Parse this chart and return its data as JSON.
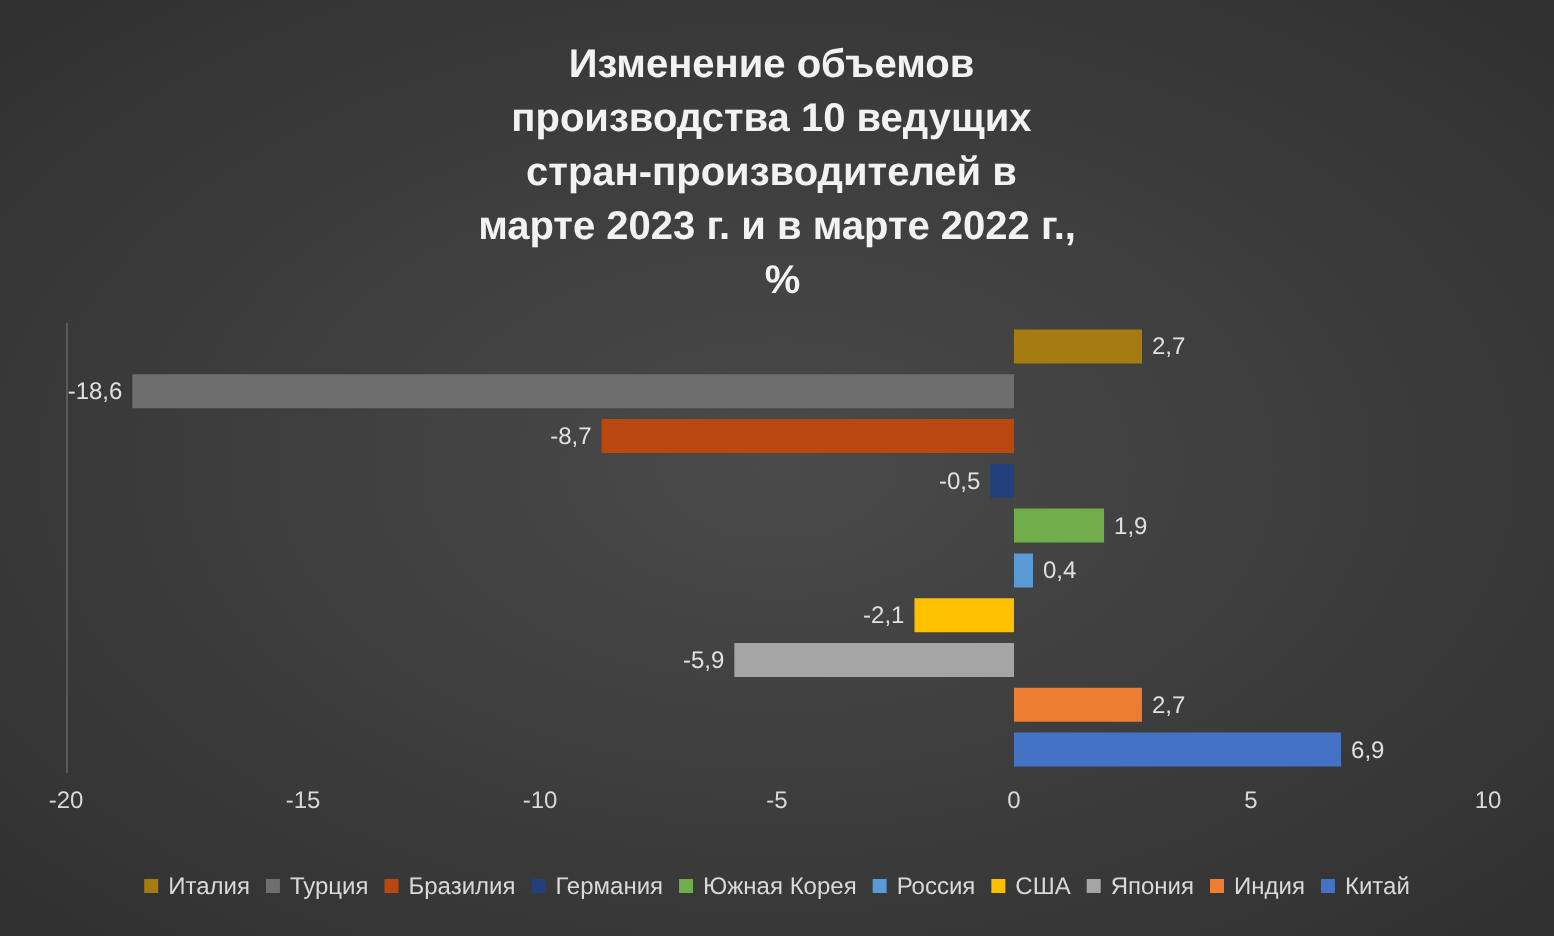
{
  "chart_data": {
    "type": "bar",
    "orientation": "horizontal",
    "title": "Изменение объемов производства 10 ведущих стран-производителей в марте 2023 г. и в марте 2022 г., %",
    "categories": [
      null,
      null,
      null,
      null,
      null,
      null,
      null,
      null,
      null,
      null
    ],
    "series": [
      {
        "name": "Италия",
        "color": "#a67c12",
        "values": [
          2.7,
          null,
          null,
          null,
          null,
          null,
          null,
          null,
          null,
          null
        ],
        "value_labels": [
          "2,7",
          null,
          null,
          null,
          null,
          null,
          null,
          null,
          null,
          null
        ]
      },
      {
        "name": "Турция",
        "color": "#6e6e6e",
        "values": [
          null,
          -18.6,
          null,
          null,
          null,
          null,
          null,
          null,
          null,
          null
        ],
        "value_labels": [
          null,
          "-18,6",
          null,
          null,
          null,
          null,
          null,
          null,
          null,
          null
        ]
      },
      {
        "name": "Бразилия",
        "color": "#b9470f",
        "values": [
          null,
          null,
          -8.7,
          null,
          null,
          null,
          null,
          null,
          null,
          null
        ],
        "value_labels": [
          null,
          null,
          "-8,7",
          null,
          null,
          null,
          null,
          null,
          null,
          null
        ]
      },
      {
        "name": "Германия",
        "color": "#21407c",
        "values": [
          null,
          null,
          null,
          -0.5,
          null,
          null,
          null,
          null,
          null,
          null
        ],
        "value_labels": [
          null,
          null,
          null,
          "-0,5",
          null,
          null,
          null,
          null,
          null,
          null
        ]
      },
      {
        "name": "Южная Корея",
        "color": "#6fae4a",
        "values": [
          null,
          null,
          null,
          null,
          1.9,
          null,
          null,
          null,
          null,
          null
        ],
        "value_labels": [
          null,
          null,
          null,
          null,
          "1,9",
          null,
          null,
          null,
          null,
          null
        ]
      },
      {
        "name": "Россия",
        "color": "#5b9bd5",
        "values": [
          null,
          null,
          null,
          null,
          null,
          0.4,
          null,
          null,
          null,
          null
        ],
        "value_labels": [
          null,
          null,
          null,
          null,
          null,
          "0,4",
          null,
          null,
          null,
          null
        ]
      },
      {
        "name": "США",
        "color": "#ffc000",
        "values": [
          null,
          null,
          null,
          null,
          null,
          null,
          -2.1,
          null,
          null,
          null
        ],
        "value_labels": [
          null,
          null,
          null,
          null,
          null,
          null,
          "-2,1",
          null,
          null,
          null
        ]
      },
      {
        "name": "Япония",
        "color": "#a5a5a5",
        "values": [
          null,
          null,
          null,
          null,
          null,
          null,
          null,
          -5.9,
          null,
          null
        ],
        "value_labels": [
          null,
          null,
          null,
          null,
          null,
          null,
          null,
          "-5,9",
          null,
          null
        ]
      },
      {
        "name": "Индия",
        "color": "#ed7d31",
        "values": [
          null,
          null,
          null,
          null,
          null,
          null,
          null,
          null,
          2.7,
          null
        ],
        "value_labels": [
          null,
          null,
          null,
          null,
          null,
          null,
          null,
          null,
          "2,7",
          null
        ]
      },
      {
        "name": "Китай",
        "color": "#4472c4",
        "values": [
          null,
          null,
          null,
          null,
          null,
          null,
          null,
          null,
          null,
          6.9
        ],
        "value_labels": [
          null,
          null,
          null,
          null,
          null,
          null,
          null,
          null,
          null,
          "6,9"
        ]
      }
    ],
    "xlim": [
      -20,
      10
    ],
    "xticks": [
      -20,
      -15,
      -10,
      -5,
      0,
      5,
      10
    ],
    "grid": false,
    "legend": "bottom"
  }
}
